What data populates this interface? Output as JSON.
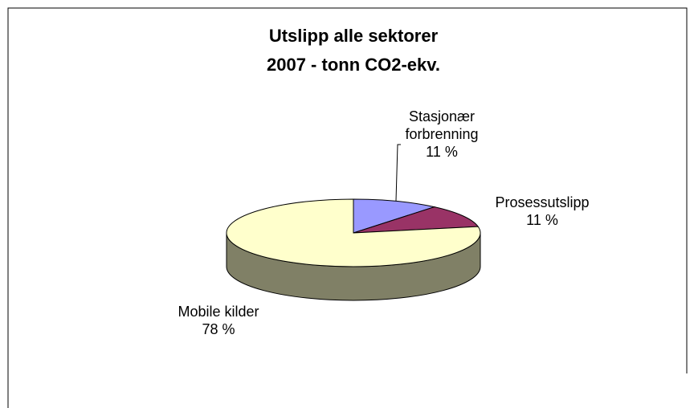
{
  "chart_data": {
    "type": "pie3d",
    "title": [
      "Utslipp alle sektorer",
      "2007 - tonn CO2-ekv."
    ],
    "categories": [
      "Stasjonær forbrenning",
      "Prosessutslipp",
      "Mobile kilder"
    ],
    "values": [
      11,
      11,
      78
    ],
    "value_labels": [
      "11 %",
      "11 %",
      "78 %"
    ],
    "colors": [
      "#9999ff",
      "#993366",
      "#ffffcc"
    ]
  }
}
